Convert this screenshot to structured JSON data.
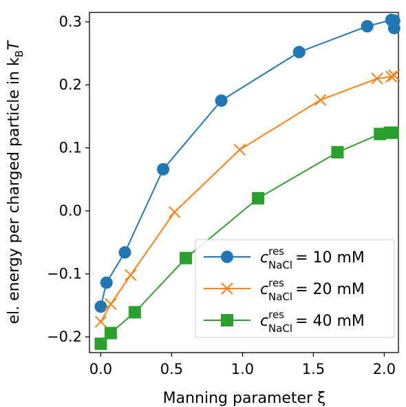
{
  "chart_data": {
    "type": "line",
    "xlabel": "Manning parameter ξ",
    "ylabel": "el. energy per charged particle in k",
    "ylabel_sub": "B",
    "ylabel_tail": "T",
    "xlim": [
      -0.08,
      2.1
    ],
    "ylim": [
      -0.225,
      0.315
    ],
    "xticks": [
      0.0,
      0.5,
      1.0,
      1.5,
      2.0
    ],
    "xtick_labels": [
      "0.0",
      "0.5",
      "1.0",
      "1.5",
      "2.0"
    ],
    "yticks": [
      -0.2,
      -0.1,
      0.0,
      0.1,
      0.2,
      0.3
    ],
    "ytick_labels": [
      "−0.2",
      "−0.1",
      "0.0",
      "0.1",
      "0.2",
      "0.3"
    ],
    "grid": false,
    "legend_position": "lower-right",
    "series": [
      {
        "name_sym": "c",
        "name_sup": "res",
        "name_sub": "NaCl",
        "name_val": "= 10 mM",
        "color": "#1f77b4",
        "marker": "circle",
        "x": [
          0.0,
          0.04,
          0.17,
          0.44,
          0.85,
          1.4,
          1.88,
          2.05,
          2.07,
          2.07
        ],
        "y": [
          -0.152,
          -0.114,
          -0.066,
          0.066,
          0.175,
          0.252,
          0.293,
          0.303,
          0.302,
          0.29
        ]
      },
      {
        "name_sym": "c",
        "name_sup": "res",
        "name_sub": "NaCl",
        "name_val": "= 20 mM",
        "color": "#ff7f0e",
        "marker": "x",
        "x": [
          0.0,
          0.07,
          0.21,
          0.52,
          0.98,
          1.55,
          1.95,
          2.05,
          2.07
        ],
        "y": [
          -0.176,
          -0.148,
          -0.102,
          -0.002,
          0.097,
          0.176,
          0.21,
          0.213,
          0.215
        ]
      },
      {
        "name_sym": "c",
        "name_sup": "res",
        "name_sub": "NaCl",
        "name_val": "= 40 mM",
        "color": "#2ca02c",
        "marker": "square",
        "x": [
          0.0,
          0.07,
          0.24,
          0.6,
          1.11,
          1.67,
          1.97,
          2.04,
          2.06
        ],
        "y": [
          -0.211,
          -0.194,
          -0.161,
          -0.075,
          0.02,
          0.093,
          0.122,
          0.124,
          0.124
        ]
      }
    ]
  }
}
